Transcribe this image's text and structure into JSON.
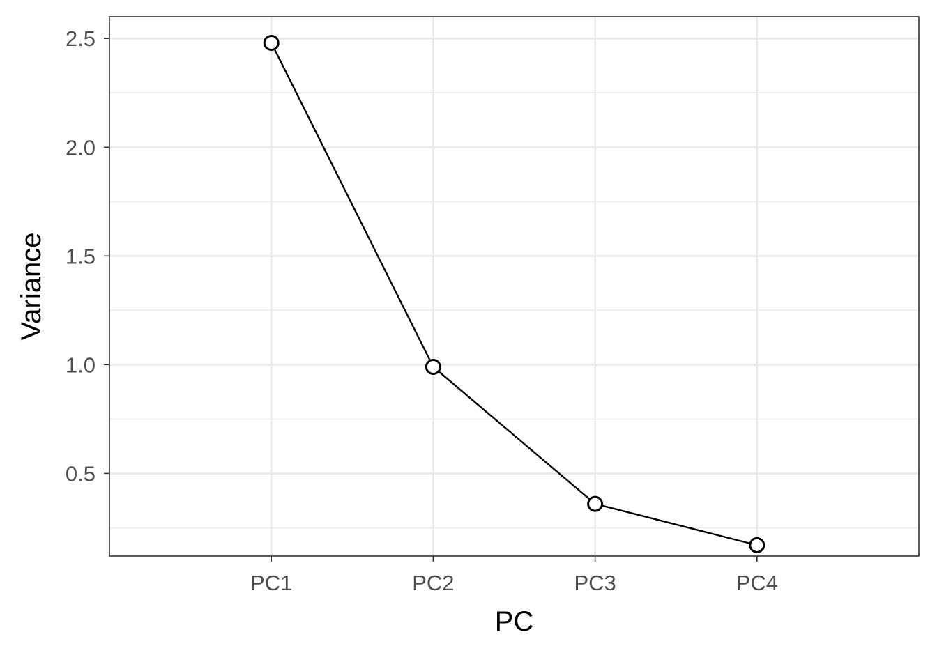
{
  "chart_data": {
    "type": "line",
    "categories": [
      "PC1",
      "PC2",
      "PC3",
      "PC4"
    ],
    "series": [
      {
        "values": [
          2.48,
          0.99,
          0.36,
          0.17
        ]
      }
    ],
    "xlabel": "PC",
    "ylabel": "Variance",
    "ylim": [
      0.12,
      2.6
    ],
    "yticks": [
      0.5,
      1.0,
      1.5,
      2.0,
      2.5
    ],
    "ytick_labels": [
      "0.5",
      "1.0",
      "1.5",
      "2.0",
      "2.5"
    ],
    "minor_yticks": [
      0.25,
      0.75,
      1.25,
      1.75,
      2.25
    ],
    "grid": true,
    "legend": "none",
    "colors": {
      "line": "#000000",
      "point_fill": "#ffffff",
      "point_stroke": "#000000",
      "grid": "#ebebeb",
      "border": "#333333",
      "tick_text": "#4d4d4d",
      "title_text": "#000000"
    }
  }
}
